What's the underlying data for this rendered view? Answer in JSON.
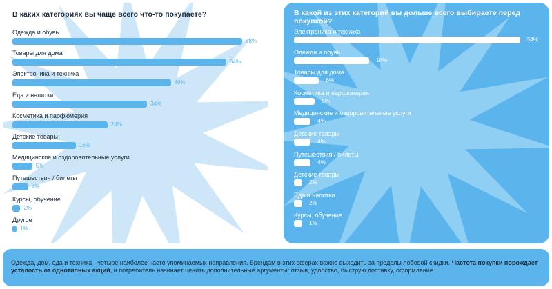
{
  "colors": {
    "accent": "#5bb5ec",
    "text_dark": "#1b2c3c",
    "burst_left": "#cde7f8",
    "burst_right": "#8fcff4"
  },
  "chart_data": [
    {
      "type": "bar",
      "orientation": "horizontal",
      "title": "В каких категориях вы чаще всего что-то покупаете?",
      "categories": [
        "Одежда и обувь",
        "Товары для дома",
        "Электроника и техника",
        "Еда и напитки",
        "Косметика и парфюмерия",
        "Детские товары",
        "Медицинские и оздоровительные услуги",
        "Путешествия / билеты",
        "Курсы, обучение",
        "Другое"
      ],
      "values": [
        58,
        54,
        40,
        34,
        24,
        16,
        5,
        4,
        2,
        1
      ],
      "value_labels": [
        "58%",
        "54%",
        "40%",
        "34%",
        "24%",
        "16%",
        "5%",
        "4%",
        "2%",
        "1%"
      ],
      "xlim": [
        0,
        58
      ],
      "grid": false
    },
    {
      "type": "bar",
      "orientation": "horizontal",
      "title": "В какой из этих категорий вы дольше всего выбираете перед покупкой?",
      "categories": [
        "Электроника и техника",
        "Одежда и обувь",
        "Товары для дома",
        "Косметика и парфюмерия",
        "Медицинские и оздоровительные услуги",
        "Детские товары",
        "Путешествия / билеты",
        "Детские товары",
        "Еда и напитки",
        "Курсы, обучение"
      ],
      "values": [
        54,
        18,
        6,
        5,
        4,
        4,
        4,
        2,
        2,
        1
      ],
      "value_labels": [
        "54%",
        "18%",
        "6%",
        "5%",
        "4%",
        "4%",
        "4%",
        "2%",
        "2%",
        "1%"
      ],
      "xlim": [
        0,
        54
      ],
      "grid": false
    }
  ],
  "footer": {
    "text_1": "Одежда, дом, еда и техника - четыре наиболее часто упоминаемых направления. Брендам в этих сферах важно выходить за пределы лобовой скидки. ",
    "text_bold": "Частота покупки порождает усталость от однотипных акций",
    "text_2": ", и потребитель начинает ценить дополнительные аргументы: отзыв, удобство, быструю доставку, оформление"
  }
}
